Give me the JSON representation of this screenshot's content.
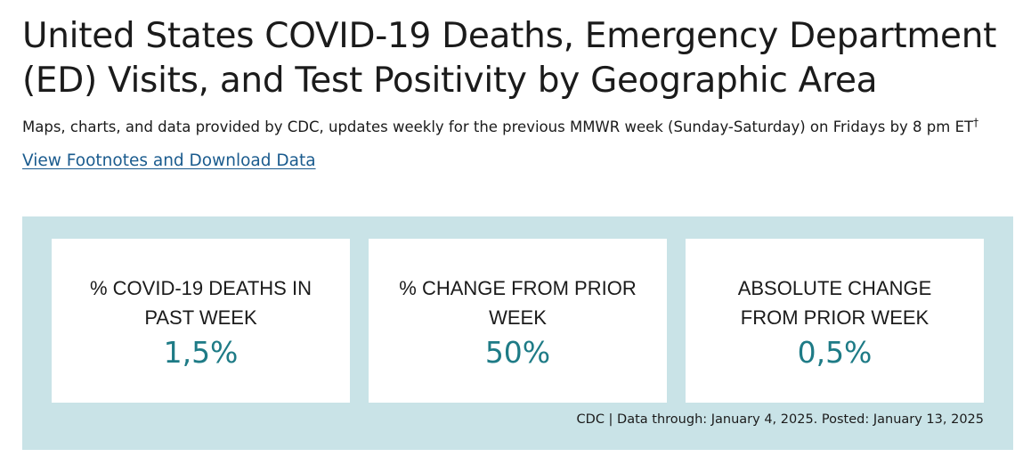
{
  "header": {
    "title": "United States COVID-19 Deaths, Emergency Department (ED) Visits, and Test Positivity by Geographic Area",
    "subtitle": "Maps, charts, and data provided by CDC, updates weekly for the previous MMWR week (Sunday-Saturday) on Fridays by 8 pm ET",
    "subtitle_mark": "†",
    "footnotes_link": "View Footnotes and Download Data"
  },
  "cards": [
    {
      "label": "% COVID-19 DEATHS IN PAST WEEK",
      "value": "1,5%"
    },
    {
      "label": "% CHANGE FROM PRIOR WEEK",
      "value": "50%"
    },
    {
      "label": "ABSOLUTE CHANGE FROM PRIOR WEEK",
      "value": "0,5%"
    }
  ],
  "footer": {
    "source": "CDC | Data through: January 4, 2025. Posted: January 13, 2025"
  },
  "colors": {
    "panel_background": "#c9e3e7",
    "value_teal": "#1e7b86",
    "link_blue": "#1a5b8e"
  }
}
